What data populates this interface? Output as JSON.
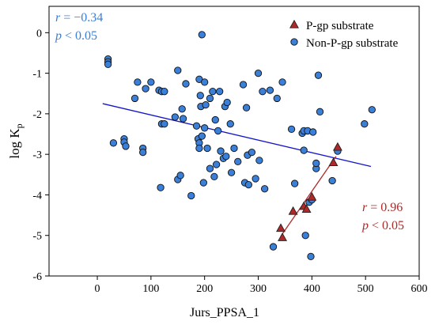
{
  "chart_data": {
    "type": "scatter",
    "title": "",
    "xlabel": "Jurs_PPSA_1",
    "ylabel": {
      "main": "log K",
      "sub": "p"
    },
    "xlim": [
      -90,
      600
    ],
    "ylim": [
      -6,
      0.65
    ],
    "xticks": [
      0,
      100,
      200,
      300,
      400,
      500,
      600
    ],
    "yticks": [
      0,
      -1,
      -2,
      -3,
      -4,
      -5,
      -6
    ],
    "grid": false,
    "legend": {
      "placement": "top-right",
      "entries": [
        {
          "series": "pgp",
          "label": "P-gp substrate"
        },
        {
          "series": "nonpgp",
          "label": "Non-P-gp substrate"
        }
      ]
    },
    "series": [
      {
        "key": "nonpgp",
        "name": "Non-P-gp substrate",
        "marker": "circle",
        "color": "#3a7fd8",
        "points": [
          [
            20,
            -0.65
          ],
          [
            20,
            -0.72
          ],
          [
            20,
            -0.78
          ],
          [
            30,
            -2.72
          ],
          [
            50,
            -2.62
          ],
          [
            50,
            -2.7
          ],
          [
            53,
            -2.8
          ],
          [
            70,
            -1.62
          ],
          [
            75,
            -1.22
          ],
          [
            85,
            -2.85
          ],
          [
            85,
            -2.95
          ],
          [
            90,
            -1.38
          ],
          [
            100,
            -1.22
          ],
          [
            115,
            -1.42
          ],
          [
            118,
            -3.82
          ],
          [
            120,
            -1.45
          ],
          [
            120,
            -2.25
          ],
          [
            125,
            -1.45
          ],
          [
            125,
            -2.25
          ],
          [
            145,
            -2.08
          ],
          [
            150,
            -3.62
          ],
          [
            150,
            -0.93
          ],
          [
            155,
            -3.52
          ],
          [
            158,
            -1.88
          ],
          [
            160,
            -2.12
          ],
          [
            165,
            -1.26
          ],
          [
            175,
            -4.02
          ],
          [
            185,
            -2.3
          ],
          [
            188,
            -2.62
          ],
          [
            190,
            -2.72
          ],
          [
            190,
            -2.85
          ],
          [
            190,
            -1.15
          ],
          [
            192,
            -1.55
          ],
          [
            193,
            -1.82
          ],
          [
            195,
            -2.55
          ],
          [
            195,
            -0.05
          ],
          [
            198,
            -3.7
          ],
          [
            200,
            -1.22
          ],
          [
            200,
            -2.35
          ],
          [
            202,
            -1.78
          ],
          [
            205,
            -2.85
          ],
          [
            210,
            -1.62
          ],
          [
            210,
            -3.35
          ],
          [
            215,
            -1.45
          ],
          [
            218,
            -3.55
          ],
          [
            220,
            -2.15
          ],
          [
            222,
            -3.25
          ],
          [
            225,
            -2.42
          ],
          [
            228,
            -1.45
          ],
          [
            230,
            -2.92
          ],
          [
            235,
            -3.1
          ],
          [
            238,
            -1.82
          ],
          [
            240,
            -3.05
          ],
          [
            242,
            -1.72
          ],
          [
            248,
            -2.25
          ],
          [
            250,
            -3.45
          ],
          [
            255,
            -2.85
          ],
          [
            262,
            -3.18
          ],
          [
            272,
            -1.28
          ],
          [
            275,
            -3.7
          ],
          [
            278,
            -1.85
          ],
          [
            280,
            -3.02
          ],
          [
            282,
            -3.75
          ],
          [
            288,
            -2.95
          ],
          [
            295,
            -3.6
          ],
          [
            300,
            -1.0
          ],
          [
            302,
            -3.15
          ],
          [
            308,
            -1.45
          ],
          [
            312,
            -3.85
          ],
          [
            322,
            -1.42
          ],
          [
            328,
            -5.28
          ],
          [
            335,
            -1.62
          ],
          [
            345,
            -1.22
          ],
          [
            362,
            -2.38
          ],
          [
            368,
            -3.72
          ],
          [
            382,
            -2.48
          ],
          [
            385,
            -2.42
          ],
          [
            385,
            -2.9
          ],
          [
            388,
            -5.0
          ],
          [
            392,
            -2.42
          ],
          [
            395,
            -4.18
          ],
          [
            398,
            -5.52
          ],
          [
            400,
            -4.12
          ],
          [
            402,
            -2.45
          ],
          [
            408,
            -3.35
          ],
          [
            408,
            -3.22
          ],
          [
            412,
            -1.05
          ],
          [
            415,
            -1.95
          ],
          [
            438,
            -3.65
          ],
          [
            448,
            -2.92
          ],
          [
            498,
            -2.25
          ],
          [
            512,
            -1.9
          ]
        ]
      },
      {
        "key": "pgp",
        "name": "P-gp substrate",
        "marker": "triangle",
        "color": "#b02828",
        "points": [
          [
            342,
            -4.82
          ],
          [
            345,
            -5.05
          ],
          [
            365,
            -4.4
          ],
          [
            385,
            -4.28
          ],
          [
            390,
            -4.35
          ],
          [
            400,
            -4.05
          ],
          [
            440,
            -3.2
          ],
          [
            448,
            -2.82
          ]
        ]
      }
    ],
    "regression_lines": [
      {
        "series": "nonpgp",
        "color": "#1515cc",
        "from": [
          10,
          -1.75
        ],
        "to": [
          510,
          -3.3
        ]
      },
      {
        "series": "pgp",
        "color": "#b02828",
        "from": [
          342,
          -5.02
        ],
        "to": [
          445,
          -3.05
        ]
      }
    ],
    "annotations": [
      {
        "key": "nonpgp_r",
        "var": "r",
        "op": " = ",
        "value": "−0.34",
        "color": "#3a7fd8"
      },
      {
        "key": "nonpgp_p",
        "var": "p",
        "op": " < ",
        "value": "0.05",
        "color": "#3a7fd8"
      },
      {
        "key": "pgp_r",
        "var": "r",
        "op": "  = ",
        "value": "0.96",
        "color": "#b02828"
      },
      {
        "key": "pgp_p",
        "var": "p",
        "op": " < ",
        "value": "0.05",
        "color": "#b02828"
      }
    ]
  }
}
